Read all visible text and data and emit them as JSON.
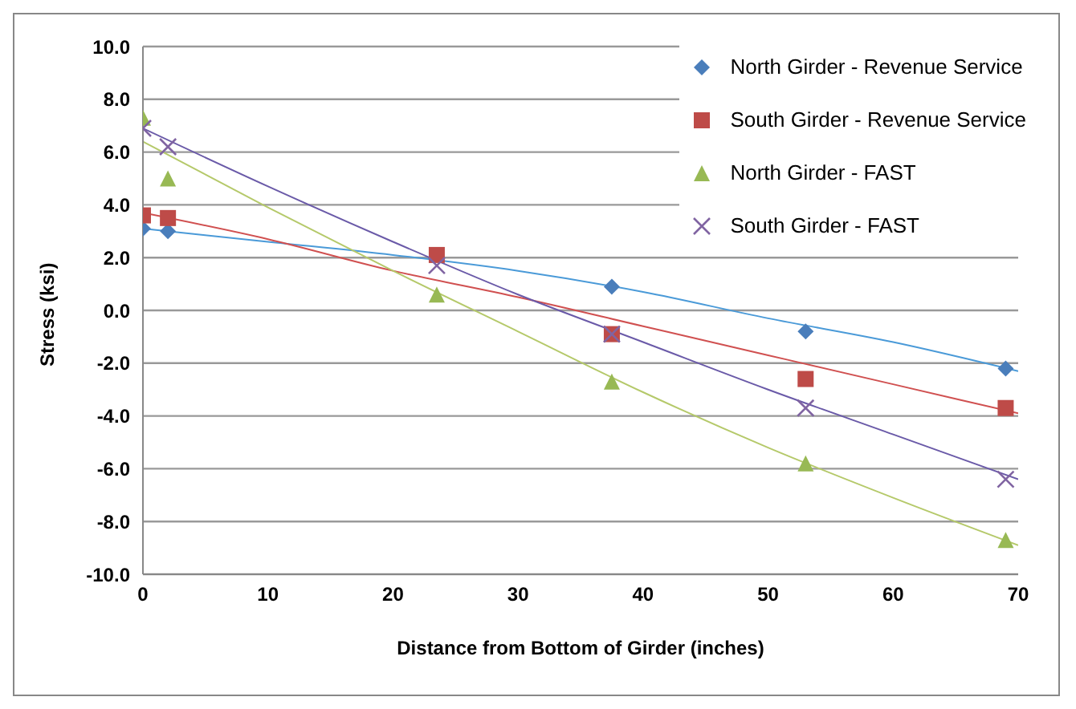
{
  "chart_data": {
    "type": "scatter",
    "xlabel": "Distance from Bottom of Girder (inches)",
    "ylabel": "Stress (ksi)",
    "xlim": [
      0,
      70
    ],
    "xticks": [
      0,
      10,
      20,
      30,
      40,
      50,
      60,
      70
    ],
    "ylim": [
      -10,
      10
    ],
    "yticks": [
      {
        "value": -10,
        "label": "-10.0"
      },
      {
        "value": -8,
        "label": "-8.0"
      },
      {
        "value": -6,
        "label": "-6.0"
      },
      {
        "value": -4,
        "label": "-4.0"
      },
      {
        "value": -2,
        "label": "-2.0"
      },
      {
        "value": 0,
        "label": "0.0"
      },
      {
        "value": 2,
        "label": "2.0"
      },
      {
        "value": 4,
        "label": "4.0"
      },
      {
        "value": 6,
        "label": "6.0"
      },
      {
        "value": 8,
        "label": "8.0"
      },
      {
        "value": 10,
        "label": "10.0"
      }
    ],
    "grid": "y",
    "legend": "top right",
    "x": [
      0,
      2,
      23.5,
      37.5,
      53,
      69
    ],
    "series": [
      {
        "name": "North Girder - Revenue Service",
        "color": "#4a7ebb",
        "marker": "diamond",
        "values": [
          3.1,
          3.0,
          null,
          0.9,
          -0.8,
          -2.2
        ]
      },
      {
        "name": "South Girder - Revenue Service",
        "color": "#be4b48",
        "marker": "square",
        "values": [
          3.6,
          3.5,
          2.1,
          -0.9,
          -2.6,
          -3.7
        ]
      },
      {
        "name": "North Girder - FAST",
        "color": "#98b954",
        "marker": "triangle",
        "values": [
          7.3,
          5.0,
          0.6,
          -2.7,
          -5.8,
          -8.7
        ]
      },
      {
        "name": "South Girder - FAST",
        "color": "#8064a2",
        "marker": "cross",
        "values": [
          6.9,
          6.2,
          1.7,
          -0.9,
          -3.7,
          -6.4
        ]
      },
      {
        "type": "line",
        "color": "#4a9ad8",
        "marker": "none",
        "x": [
          0,
          10,
          20,
          30,
          40,
          50,
          60,
          70
        ],
        "values": [
          3.1,
          2.6,
          2.1,
          1.5,
          0.7,
          -0.3,
          -1.2,
          -2.3
        ]
      },
      {
        "type": "line",
        "color": "#d05050",
        "marker": "none",
        "x": [
          0,
          10,
          20,
          30,
          40,
          50,
          60,
          70
        ],
        "values": [
          3.7,
          2.7,
          1.5,
          0.5,
          -0.6,
          -1.7,
          -2.8,
          -3.9
        ]
      },
      {
        "type": "line",
        "color": "#b5c96a",
        "marker": "none",
        "x": [
          0,
          10,
          20,
          30,
          40,
          50,
          60,
          70
        ],
        "values": [
          6.4,
          3.9,
          1.5,
          -0.8,
          -3.1,
          -5.2,
          -7.1,
          -8.9
        ]
      },
      {
        "type": "line",
        "color": "#6a5aa8",
        "marker": "none",
        "x": [
          0,
          10,
          20,
          30,
          40,
          50,
          60,
          70
        ],
        "values": [
          6.9,
          4.7,
          2.6,
          0.6,
          -1.2,
          -3.0,
          -4.7,
          -6.4
        ]
      }
    ]
  }
}
